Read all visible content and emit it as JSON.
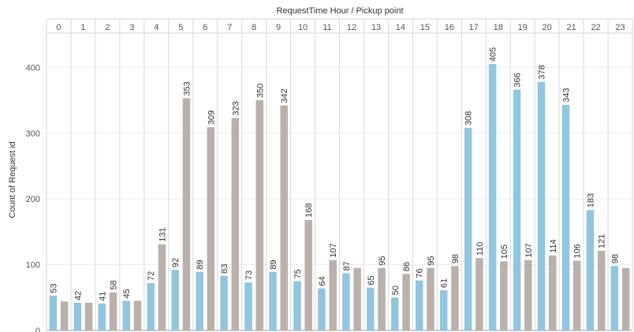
{
  "chart_data": {
    "type": "bar",
    "title": "RequestTime Hour  /  Pickup point",
    "ylabel": "Count of Request id",
    "categories": [
      "0",
      "1",
      "2",
      "3",
      "4",
      "5",
      "6",
      "7",
      "8",
      "9",
      "10",
      "11",
      "12",
      "13",
      "14",
      "15",
      "16",
      "17",
      "18",
      "19",
      "20",
      "21",
      "22",
      "23"
    ],
    "series": [
      {
        "color": "#92c5de",
        "values": [
          53,
          42,
          41,
          45,
          72,
          92,
          89,
          83,
          73,
          89,
          75,
          64,
          87,
          65,
          50,
          76,
          61,
          308,
          405,
          366,
          378,
          343,
          183,
          98
        ],
        "labels": [
          "53",
          "42",
          "41",
          "45",
          "72",
          "92",
          "89",
          "83",
          "73",
          "89",
          "75",
          "64",
          "87",
          "65",
          "50",
          "76",
          "61",
          "308",
          "405",
          "366",
          "378",
          "343",
          "183",
          "98"
        ]
      },
      {
        "color": "#bab0ac",
        "values": [
          44,
          42,
          58,
          45,
          131,
          353,
          309,
          323,
          350,
          342,
          168,
          107,
          95,
          95,
          86,
          95,
          98,
          110,
          105,
          107,
          114,
          106,
          121,
          95
        ],
        "labels": [
          "",
          "",
          "58",
          "",
          "131",
          "353",
          "309",
          "323",
          "350",
          "342",
          "168",
          "107",
          "",
          "95",
          "86",
          "95",
          "98",
          "110",
          "105",
          "107",
          "114",
          "106",
          "121",
          ""
        ]
      }
    ],
    "ylim": [
      0,
      452
    ],
    "yticks": [
      "0",
      "100",
      "200",
      "300",
      "400"
    ],
    "grid": true
  }
}
